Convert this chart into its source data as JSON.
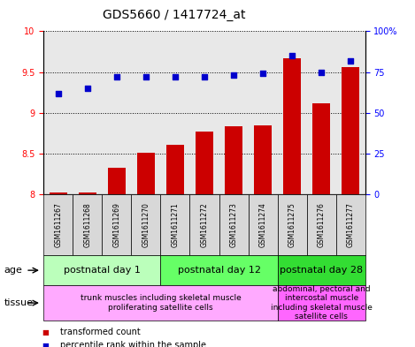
{
  "title": "GDS5660 / 1417724_at",
  "samples": [
    "GSM1611267",
    "GSM1611268",
    "GSM1611269",
    "GSM1611270",
    "GSM1611271",
    "GSM1611272",
    "GSM1611273",
    "GSM1611274",
    "GSM1611275",
    "GSM1611276",
    "GSM1611277"
  ],
  "transformed_count": [
    8.02,
    8.02,
    8.33,
    8.51,
    8.61,
    8.77,
    8.84,
    8.85,
    9.67,
    9.12,
    9.56
  ],
  "percentile_rank": [
    62,
    65,
    72,
    72,
    72,
    72,
    73,
    74,
    85,
    75,
    82
  ],
  "ylim_left": [
    8,
    10
  ],
  "ylim_right": [
    0,
    100
  ],
  "yticks_left": [
    8,
    8.5,
    9,
    9.5,
    10
  ],
  "yticks_right": [
    0,
    25,
    50,
    75,
    100
  ],
  "bar_color": "#cc0000",
  "dot_color": "#0000cc",
  "plot_bg_color": "#e8e8e8",
  "age_groups": [
    {
      "label": "postnatal day 1",
      "start": 0,
      "end": 4,
      "color": "#bbffbb"
    },
    {
      "label": "postnatal day 12",
      "start": 4,
      "end": 8,
      "color": "#66ff66"
    },
    {
      "label": "postnatal day 28",
      "start": 8,
      "end": 11,
      "color": "#33dd33"
    }
  ],
  "tissue_groups": [
    {
      "label": "trunk muscles including skeletal muscle\nproliferating satellite cells",
      "start": 0,
      "end": 8,
      "color": "#ffaaff"
    },
    {
      "label": "abdominal, pectoral and\nintercostal muscle\nincluding skeletal muscle\nsatellite cells",
      "start": 8,
      "end": 11,
      "color": "#ff66ff"
    }
  ],
  "age_label": "age",
  "tissue_label": "tissue",
  "legend_bar": "transformed count",
  "legend_dot": "percentile rank within the sample",
  "title_fontsize": 10,
  "tick_fontsize": 7,
  "sample_fontsize": 5.5,
  "label_fontsize": 8,
  "annot_fontsize": 8,
  "tissue_fontsize": 6.5
}
